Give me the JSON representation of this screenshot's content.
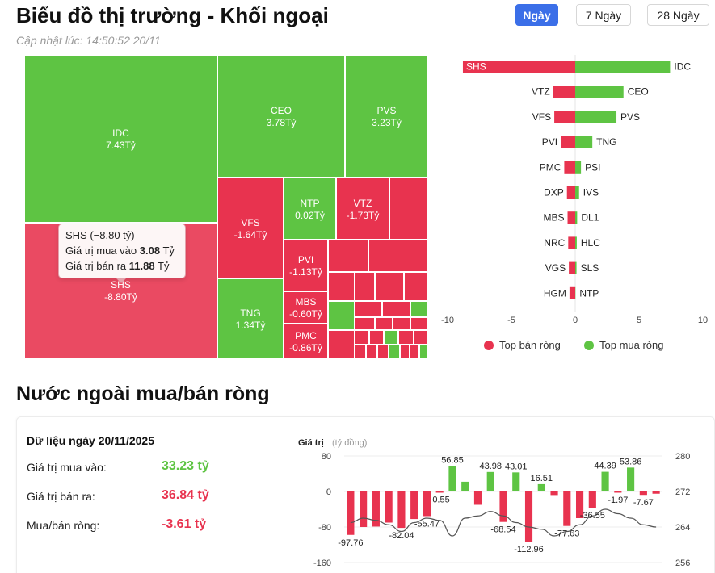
{
  "header": {
    "title": "Biểu đồ thị trường - Khối ngoại",
    "updated": "Cập nhật lúc: 14:50:52 20/11",
    "periods": [
      {
        "label": "Ngày",
        "active": true
      },
      {
        "label": "7 Ngày",
        "active": false
      },
      {
        "label": "28 Ngày",
        "active": false
      }
    ]
  },
  "colors": {
    "buy": "#5ec443",
    "sell": "#e8334f",
    "sell_hover": "#ea4a62",
    "accent": "#3b6fe8"
  },
  "treemap": {
    "tiles": [
      {
        "code": "IDC",
        "value": "7.43Tỷ"
      },
      {
        "code": "SHS",
        "value": "-8.80Tỷ"
      },
      {
        "code": "CEO",
        "value": "3.78Tỷ"
      },
      {
        "code": "PVS",
        "value": "3.23Tỷ"
      },
      {
        "code": "VFS",
        "value": "-1.64Tỷ"
      },
      {
        "code": "NTP",
        "value": "0.02Tỷ"
      },
      {
        "code": "VTZ",
        "value": "-1.73Tỷ"
      },
      {
        "code": "PVI",
        "value": "-1.13Tỷ"
      },
      {
        "code": "MBS",
        "value": "-0.60Tỷ"
      },
      {
        "code": "PMC",
        "value": "-0.86Tỷ"
      },
      {
        "code": "TNG",
        "value": "1.34Tỷ"
      }
    ],
    "tooltip": {
      "title": "SHS (−8.80 tỷ)",
      "buy_label": "Giá trị mua vào",
      "buy_value": "3.08",
      "sell_label": "Giá trị bán ra",
      "sell_value": "11.88",
      "unit": "Tỷ"
    }
  },
  "chart_data": [
    {
      "type": "bar",
      "orientation": "horizontal",
      "xlim": [
        -10,
        10
      ],
      "ticks": [
        -10,
        -5,
        0,
        5,
        10
      ],
      "rows": [
        {
          "sell": "SHS",
          "sell_value": -8.8,
          "buy": "IDC",
          "buy_value": 7.43
        },
        {
          "sell": "VTZ",
          "sell_value": -1.73,
          "buy": "CEO",
          "buy_value": 3.78
        },
        {
          "sell": "VFS",
          "sell_value": -1.64,
          "buy": "PVS",
          "buy_value": 3.23
        },
        {
          "sell": "PVI",
          "sell_value": -1.13,
          "buy": "TNG",
          "buy_value": 1.34
        },
        {
          "sell": "PMC",
          "sell_value": -0.86,
          "buy": "PSI",
          "buy_value": 0.45
        },
        {
          "sell": "DXP",
          "sell_value": -0.65,
          "buy": "IVS",
          "buy_value": 0.3
        },
        {
          "sell": "MBS",
          "sell_value": -0.6,
          "buy": "DL1",
          "buy_value": 0.15
        },
        {
          "sell": "NRC",
          "sell_value": -0.55,
          "buy": "HLC",
          "buy_value": 0.12
        },
        {
          "sell": "VGS",
          "sell_value": -0.5,
          "buy": "SLS",
          "buy_value": 0.1
        },
        {
          "sell": "HGM",
          "sell_value": -0.45,
          "buy": "NTP",
          "buy_value": 0.02
        }
      ],
      "legend": [
        {
          "name": "Top bán ròng",
          "color": "#e8334f"
        },
        {
          "name": "Top mua ròng",
          "color": "#5ec443"
        }
      ],
      "legend_position": "bottom"
    },
    {
      "type": "bar",
      "ylabel": "Giá trị",
      "ylabel_unit": "(tỷ đồng)",
      "ylim": [
        -160,
        80
      ],
      "yticks": [
        80,
        0,
        -80,
        -160
      ],
      "y2lim": [
        256,
        280
      ],
      "y2ticks": [
        280,
        272,
        264,
        256
      ],
      "values": [
        -97.76,
        -80,
        -79,
        -70,
        -82.04,
        -62,
        -55.47,
        -0.55,
        56.85,
        22,
        -30,
        43.98,
        -68.54,
        43.01,
        -112.96,
        16.51,
        -8,
        -77.63,
        -60,
        -36.55,
        44.39,
        -1.97,
        53.86,
        -7.67,
        -5
      ],
      "labels": [
        -97.76,
        null,
        null,
        null,
        -82.04,
        null,
        -55.47,
        -0.55,
        56.85,
        null,
        null,
        43.98,
        -68.54,
        43.01,
        -112.96,
        16.51,
        null,
        -77.63,
        null,
        -36.55,
        44.39,
        -1.97,
        53.86,
        -7.67,
        null
      ],
      "line": [
        265,
        266,
        265.5,
        264.5,
        263,
        265,
        266,
        265.5,
        262,
        266,
        266.5,
        267.5,
        266.5,
        265,
        264,
        263.5,
        262,
        263,
        264.5,
        266.5,
        268,
        267,
        266,
        264.5,
        264
      ]
    }
  ],
  "summary": {
    "date_label": "Dữ liệu ngày 20/11/2025",
    "section_title": "Nước ngoài mua/bán ròng",
    "rows": [
      {
        "label": "Giá trị mua vào:",
        "value": "33.23 tỷ",
        "tone": "buy"
      },
      {
        "label": "Giá trị bán ra:",
        "value": "36.84 tỷ",
        "tone": "sell"
      },
      {
        "label": "Mua/bán ròng:",
        "value": "-3.61 tỷ",
        "tone": "sell"
      }
    ]
  }
}
